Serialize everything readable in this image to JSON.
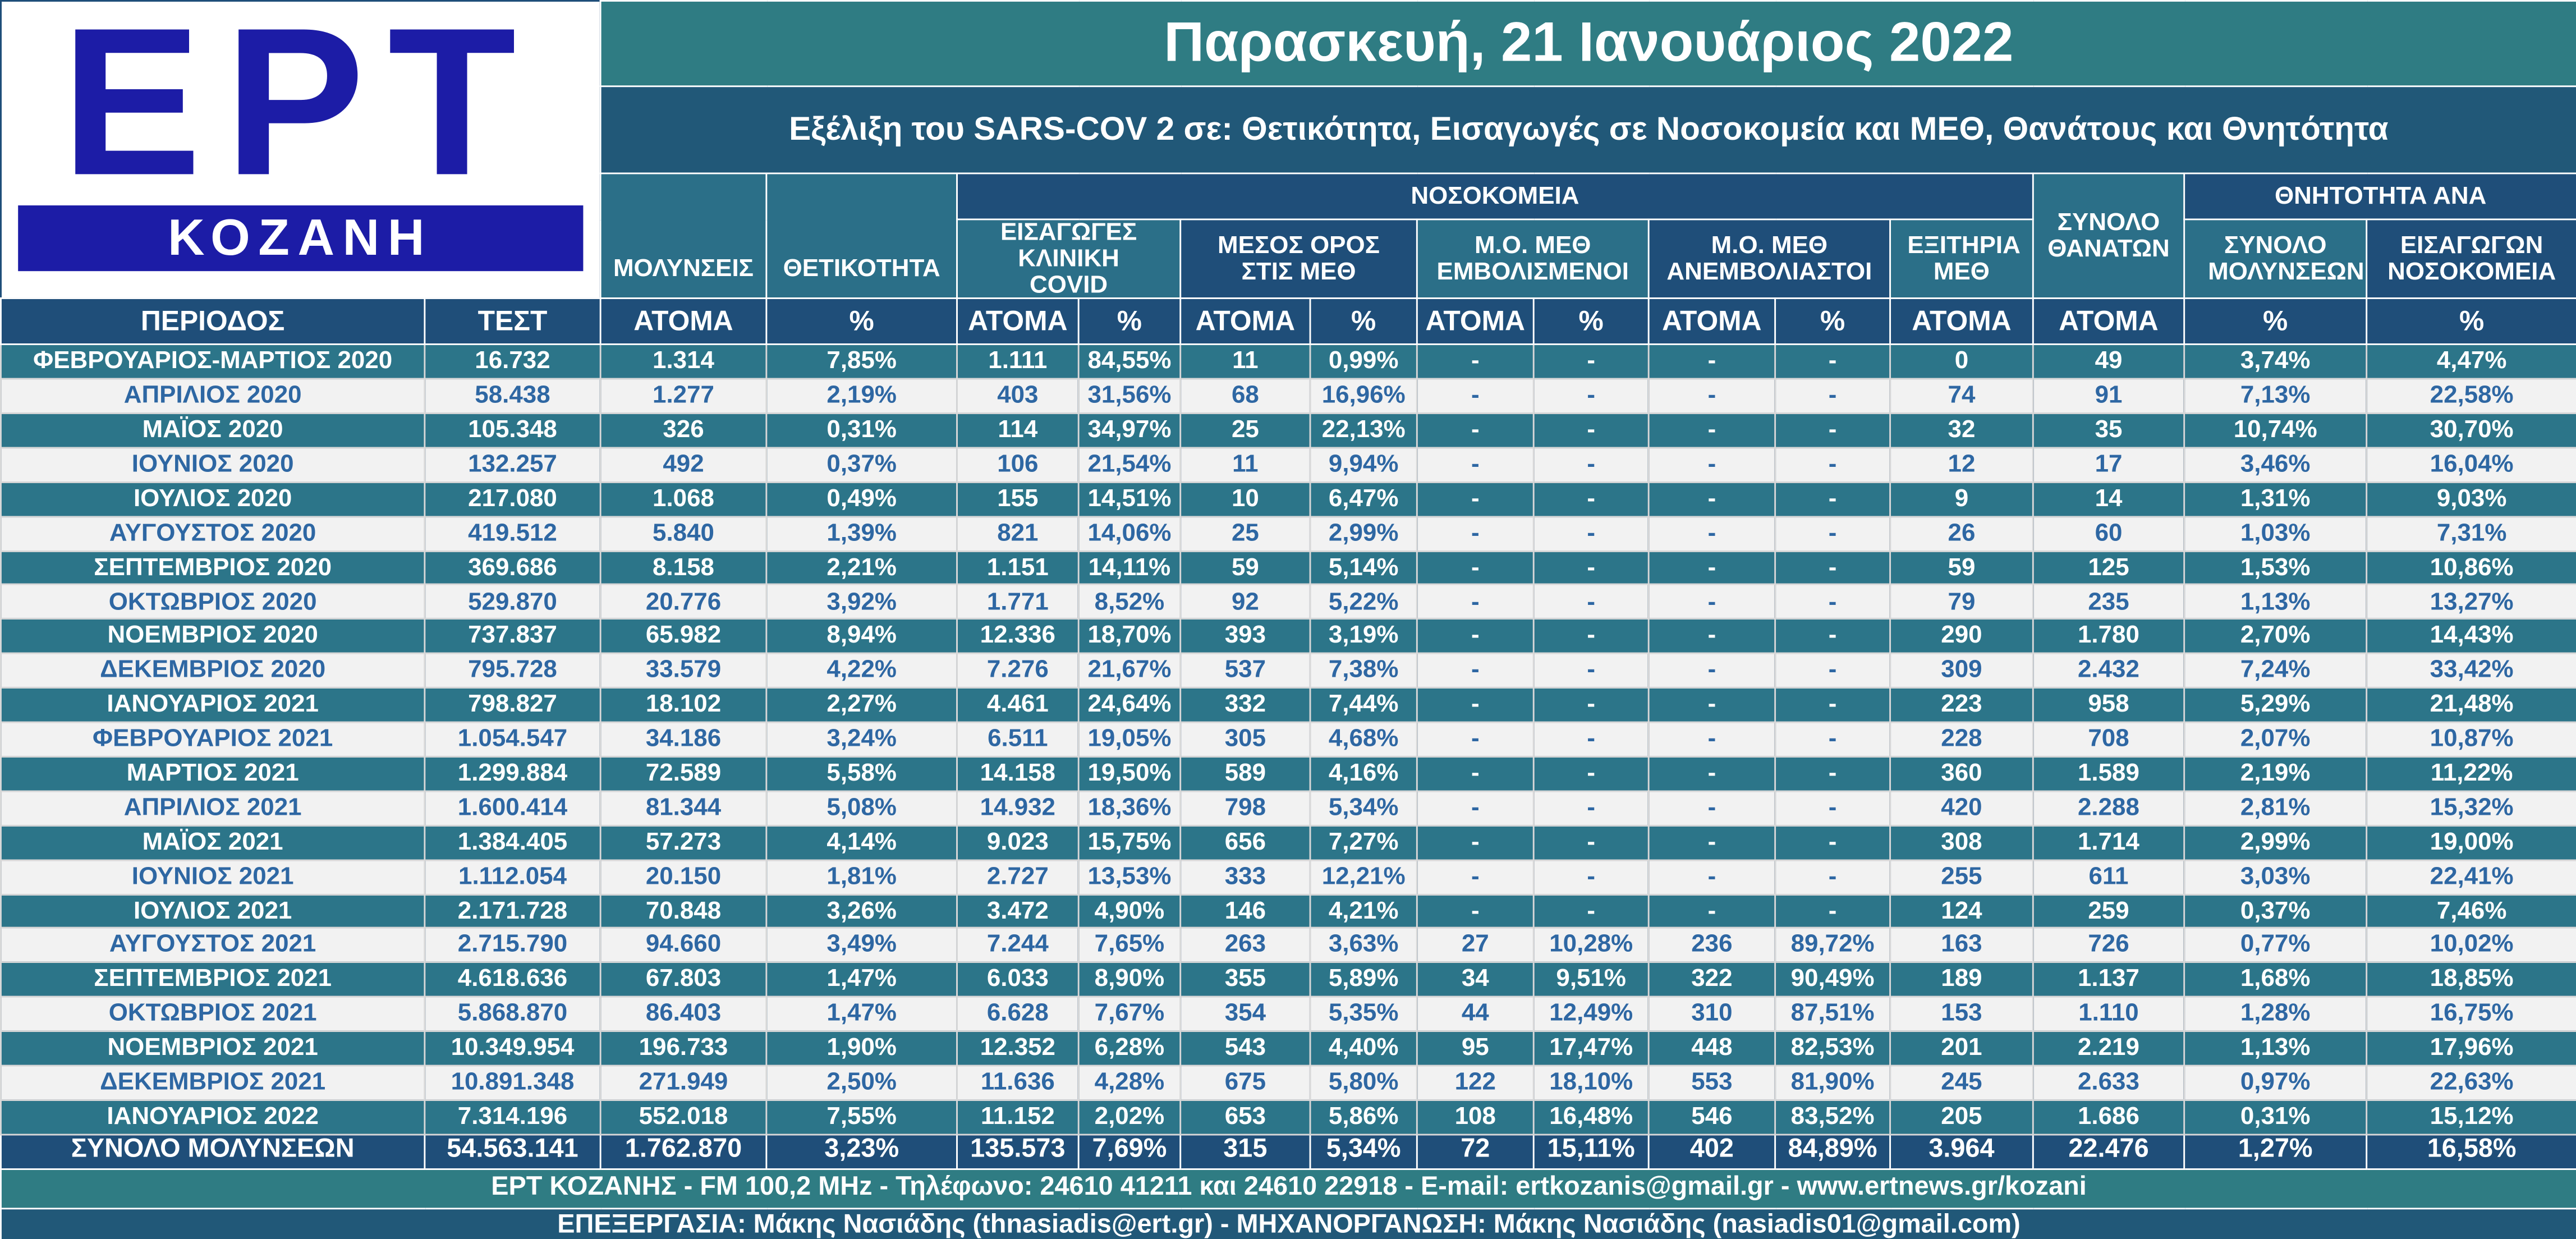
{
  "logo": {
    "brand": "ΕΡΤ",
    "city": "ΚΟΖΑΝΗ"
  },
  "header": {
    "title": "Παρασκευή, 21 Ιανουάριος 2022",
    "subtitle": "Εξέλιξη του SARS-COV 2 σε: Θετικότητα, Εισαγωγές σε Νοσοκομεία και ΜΕΘ, Θανάτους και Θνητότητα"
  },
  "table": {
    "groups": [
      "ΜΟΛΥΝΣΕΙΣ",
      "ΘΕΤΙΚΟΤΗΤΑ",
      "ΝΟΣΟΚΟΜΕΙΑ",
      "ΣΥΝΟΛΟ ΘΑΝΑΤΩΝ",
      "ΘΝΗΤΟΤΗΤΑ ΑΝΑ"
    ],
    "subgroups": [
      "ΕΙΣΑΓΩΓΕΣ ΚΛΙΝΙΚΗ COVID",
      "ΜΕΣΟΣ ΟΡΟΣ ΣΤΙΣ ΜΕΘ",
      "Μ.Ο. ΜΕΘ ΕΜΒΟΛΙΣΜΕΝΟΙ",
      "Μ.Ο. ΜΕΘ ΑΝΕΜΒΟΛΙΑΣΤΟΙ",
      "ΕΞΙΤΗΡΙΑ ΜΕΘ",
      "ΣΥΝΟΛΟ ΜΟΛΥΝΣΕΩΝ",
      "ΕΙΣΑΓΩΓΩΝ ΝΟΣΟΚΟΜΕΙΑ"
    ],
    "units": [
      "ΠΕΡΙΟΔΟΣ",
      "ΤΕΣΤ",
      "ΑΤΟΜΑ",
      "%",
      "ΑΤΟΜΑ",
      "%",
      "ΑΤΟΜΑ",
      "%",
      "ΑΤΟΜΑ",
      "%",
      "ΑΤΟΜΑ",
      "%",
      "ΑΤΟΜΑ",
      "ΑΤΟΜΑ",
      "%",
      "%"
    ],
    "rows": [
      [
        "ΦΕΒΡΟΥΑΡΙΟΣ-ΜΑΡΤΙΟΣ 2020",
        "16.732",
        "1.314",
        "7,85%",
        "1.111",
        "84,55%",
        "11",
        "0,99%",
        "-",
        "-",
        "-",
        "-",
        "0",
        "49",
        "3,74%",
        "4,47%"
      ],
      [
        "ΑΠΡΙΛΙΟΣ 2020",
        "58.438",
        "1.277",
        "2,19%",
        "403",
        "31,56%",
        "68",
        "16,96%",
        "-",
        "-",
        "-",
        "-",
        "74",
        "91",
        "7,13%",
        "22,58%"
      ],
      [
        "ΜΑΪΟΣ 2020",
        "105.348",
        "326",
        "0,31%",
        "114",
        "34,97%",
        "25",
        "22,13%",
        "-",
        "-",
        "-",
        "-",
        "32",
        "35",
        "10,74%",
        "30,70%"
      ],
      [
        "ΙΟΥΝΙΟΣ 2020",
        "132.257",
        "492",
        "0,37%",
        "106",
        "21,54%",
        "11",
        "9,94%",
        "-",
        "-",
        "-",
        "-",
        "12",
        "17",
        "3,46%",
        "16,04%"
      ],
      [
        "ΙΟΥΛΙΟΣ 2020",
        "217.080",
        "1.068",
        "0,49%",
        "155",
        "14,51%",
        "10",
        "6,47%",
        "-",
        "-",
        "-",
        "-",
        "9",
        "14",
        "1,31%",
        "9,03%"
      ],
      [
        "ΑΥΓΟΥΣΤΟΣ 2020",
        "419.512",
        "5.840",
        "1,39%",
        "821",
        "14,06%",
        "25",
        "2,99%",
        "-",
        "-",
        "-",
        "-",
        "26",
        "60",
        "1,03%",
        "7,31%"
      ],
      [
        "ΣΕΠΤΕΜΒΡΙΟΣ 2020",
        "369.686",
        "8.158",
        "2,21%",
        "1.151",
        "14,11%",
        "59",
        "5,14%",
        "-",
        "-",
        "-",
        "-",
        "59",
        "125",
        "1,53%",
        "10,86%"
      ],
      [
        "ΟΚΤΩΒΡΙΟΣ 2020",
        "529.870",
        "20.776",
        "3,92%",
        "1.771",
        "8,52%",
        "92",
        "5,22%",
        "-",
        "-",
        "-",
        "-",
        "79",
        "235",
        "1,13%",
        "13,27%"
      ],
      [
        "ΝΟΕΜΒΡΙΟΣ 2020",
        "737.837",
        "65.982",
        "8,94%",
        "12.336",
        "18,70%",
        "393",
        "3,19%",
        "-",
        "-",
        "-",
        "-",
        "290",
        "1.780",
        "2,70%",
        "14,43%"
      ],
      [
        "ΔΕΚΕΜΒΡΙΟΣ 2020",
        "795.728",
        "33.579",
        "4,22%",
        "7.276",
        "21,67%",
        "537",
        "7,38%",
        "-",
        "-",
        "-",
        "-",
        "309",
        "2.432",
        "7,24%",
        "33,42%"
      ],
      [
        "ΙΑΝΟΥΑΡΙΟΣ 2021",
        "798.827",
        "18.102",
        "2,27%",
        "4.461",
        "24,64%",
        "332",
        "7,44%",
        "-",
        "-",
        "-",
        "-",
        "223",
        "958",
        "5,29%",
        "21,48%"
      ],
      [
        "ΦΕΒΡΟΥΑΡΙΟΣ 2021",
        "1.054.547",
        "34.186",
        "3,24%",
        "6.511",
        "19,05%",
        "305",
        "4,68%",
        "-",
        "-",
        "-",
        "-",
        "228",
        "708",
        "2,07%",
        "10,87%"
      ],
      [
        "ΜΑΡΤΙΟΣ 2021",
        "1.299.884",
        "72.589",
        "5,58%",
        "14.158",
        "19,50%",
        "589",
        "4,16%",
        "-",
        "-",
        "-",
        "-",
        "360",
        "1.589",
        "2,19%",
        "11,22%"
      ],
      [
        "ΑΠΡΙΛΙΟΣ 2021",
        "1.600.414",
        "81.344",
        "5,08%",
        "14.932",
        "18,36%",
        "798",
        "5,34%",
        "-",
        "-",
        "-",
        "-",
        "420",
        "2.288",
        "2,81%",
        "15,32%"
      ],
      [
        "ΜΑΪΟΣ 2021",
        "1.384.405",
        "57.273",
        "4,14%",
        "9.023",
        "15,75%",
        "656",
        "7,27%",
        "-",
        "-",
        "-",
        "-",
        "308",
        "1.714",
        "2,99%",
        "19,00%"
      ],
      [
        "ΙΟΥΝΙΟΣ 2021",
        "1.112.054",
        "20.150",
        "1,81%",
        "2.727",
        "13,53%",
        "333",
        "12,21%",
        "-",
        "-",
        "-",
        "-",
        "255",
        "611",
        "3,03%",
        "22,41%"
      ],
      [
        "ΙΟΥΛΙΟΣ 2021",
        "2.171.728",
        "70.848",
        "3,26%",
        "3.472",
        "4,90%",
        "146",
        "4,21%",
        "-",
        "-",
        "-",
        "-",
        "124",
        "259",
        "0,37%",
        "7,46%"
      ],
      [
        "ΑΥΓΟΥΣΤΟΣ 2021",
        "2.715.790",
        "94.660",
        "3,49%",
        "7.244",
        "7,65%",
        "263",
        "3,63%",
        "27",
        "10,28%",
        "236",
        "89,72%",
        "163",
        "726",
        "0,77%",
        "10,02%"
      ],
      [
        "ΣΕΠΤΕΜΒΡΙΟΣ 2021",
        "4.618.636",
        "67.803",
        "1,47%",
        "6.033",
        "8,90%",
        "355",
        "5,89%",
        "34",
        "9,51%",
        "322",
        "90,49%",
        "189",
        "1.137",
        "1,68%",
        "18,85%"
      ],
      [
        "ΟΚΤΩΒΡΙΟΣ 2021",
        "5.868.870",
        "86.403",
        "1,47%",
        "6.628",
        "7,67%",
        "354",
        "5,35%",
        "44",
        "12,49%",
        "310",
        "87,51%",
        "153",
        "1.110",
        "1,28%",
        "16,75%"
      ],
      [
        "ΝΟΕΜΒΡΙΟΣ 2021",
        "10.349.954",
        "196.733",
        "1,90%",
        "12.352",
        "6,28%",
        "543",
        "4,40%",
        "95",
        "17,47%",
        "448",
        "82,53%",
        "201",
        "2.219",
        "1,13%",
        "17,96%"
      ],
      [
        "ΔΕΚΕΜΒΡΙΟΣ 2021",
        "10.891.348",
        "271.949",
        "2,50%",
        "11.636",
        "4,28%",
        "675",
        "5,80%",
        "122",
        "18,10%",
        "553",
        "81,90%",
        "245",
        "2.633",
        "0,97%",
        "22,63%"
      ],
      [
        "ΙΑΝΟΥΑΡΙΟΣ 2022",
        "7.314.196",
        "552.018",
        "7,55%",
        "11.152",
        "2,02%",
        "653",
        "5,86%",
        "108",
        "16,48%",
        "546",
        "83,52%",
        "205",
        "1.686",
        "0,31%",
        "15,12%"
      ]
    ],
    "total": [
      "ΣΥΝΟΛΟ ΜΟΛΥΝΣΕΩΝ",
      "54.563.141",
      "1.762.870",
      "3,23%",
      "135.573",
      "7,69%",
      "315",
      "5,34%",
      "72",
      "15,11%",
      "402",
      "84,89%",
      "3.964",
      "22.476",
      "1,27%",
      "16,58%"
    ]
  },
  "footer": [
    "ΕΡΤ ΚΟΖΑΝΗΣ - FM 100,2 MHz - Τηλέφωνο:  24610 41211 και 24610 22918 - E-mail: ertkozanis@gmail.gr - www.ertnews.gr/kozani",
    "ΕΠΕΞΕΡΓΑΣΙΑ: Μάκης Νασιάδης (thnasiadis@ert.gr) - ΜΗΧΑΝΟΡΓΑΝΩΣΗ: Μάκης Νασιάδης (nasiadis01@gmail.com)"
  ]
}
